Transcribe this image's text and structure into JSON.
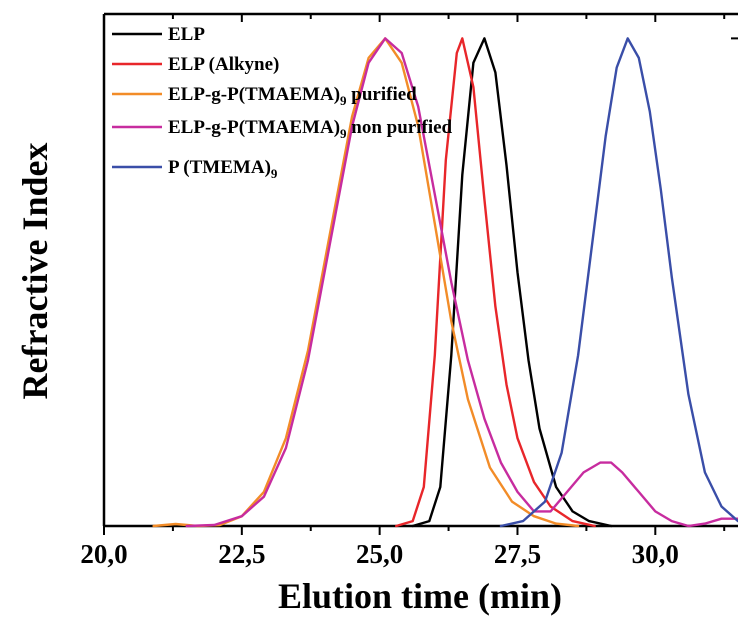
{
  "chart_data": {
    "type": "line",
    "xlabel": "Elution time (min)",
    "ylabel": "Refractive Index",
    "xlim": [
      20.0,
      31.5
    ],
    "ylim": [
      0,
      1.05
    ],
    "x_ticks": [
      "20,0",
      "22,5",
      "25,0",
      "27,5",
      "30,0"
    ],
    "x_tick_values": [
      20.0,
      22.5,
      25.0,
      27.5,
      30.0
    ],
    "grid": false,
    "legend_position": "top-left",
    "legend": [
      {
        "label": "ELP",
        "sub": "",
        "suffix": "",
        "color": "#000000"
      },
      {
        "label": "ELP (Alkyne)",
        "sub": "",
        "suffix": "",
        "color": "#e8262a"
      },
      {
        "label": "ELP-g-P(TMAEMA)",
        "sub": "9",
        "suffix": " purified",
        "color": "#f28c28"
      },
      {
        "label": "ELP-g-P(TMAEMA)",
        "sub": "9",
        "suffix": " non purified",
        "color": "#c72c9f"
      },
      {
        "label": "P (TMEMA)",
        "sub": "9",
        "suffix": "",
        "color": "#3a4ea8"
      }
    ],
    "series": [
      {
        "color": "#000000",
        "x": [
          25.6,
          25.9,
          26.1,
          26.3,
          26.5,
          26.7,
          26.9,
          27.1,
          27.3,
          27.5,
          27.7,
          27.9,
          28.2,
          28.5,
          28.8,
          29.2
        ],
        "y": [
          0,
          0.01,
          0.08,
          0.35,
          0.72,
          0.95,
          1.0,
          0.93,
          0.74,
          0.52,
          0.34,
          0.2,
          0.08,
          0.03,
          0.01,
          0
        ]
      },
      {
        "color": "#e8262a",
        "x": [
          25.3,
          25.6,
          25.8,
          26.0,
          26.2,
          26.4,
          26.5,
          26.7,
          26.9,
          27.1,
          27.3,
          27.5,
          27.8,
          28.1,
          28.5,
          28.9
        ],
        "y": [
          0,
          0.01,
          0.08,
          0.35,
          0.75,
          0.97,
          1.0,
          0.9,
          0.67,
          0.45,
          0.29,
          0.18,
          0.09,
          0.04,
          0.01,
          0
        ]
      },
      {
        "color": "#f28c28",
        "x": [
          20.9,
          21.3,
          21.7,
          22.1,
          22.5,
          22.9,
          23.3,
          23.7,
          24.1,
          24.5,
          24.8,
          25.1,
          25.4,
          25.7,
          26.0,
          26.3,
          26.6,
          27.0,
          27.4,
          27.8,
          28.2,
          28.6
        ],
        "y": [
          0,
          0.004,
          0,
          0.002,
          0.02,
          0.07,
          0.18,
          0.36,
          0.6,
          0.84,
          0.96,
          1.0,
          0.95,
          0.82,
          0.62,
          0.42,
          0.26,
          0.12,
          0.05,
          0.02,
          0.005,
          0
        ]
      },
      {
        "color": "#c72c9f",
        "x": [
          21.5,
          22.0,
          22.5,
          22.9,
          23.3,
          23.7,
          24.1,
          24.5,
          24.8,
          25.1,
          25.4,
          25.7,
          26.0,
          26.3,
          26.6,
          26.9,
          27.2,
          27.5,
          27.8,
          28.1,
          28.4,
          28.7,
          29.0,
          29.2,
          29.4,
          29.7,
          30.0,
          30.3,
          30.6,
          30.9,
          31.2,
          31.5
        ],
        "y": [
          0,
          0.002,
          0.02,
          0.06,
          0.16,
          0.34,
          0.58,
          0.82,
          0.95,
          1.0,
          0.97,
          0.86,
          0.68,
          0.5,
          0.34,
          0.22,
          0.13,
          0.07,
          0.03,
          0.03,
          0.07,
          0.11,
          0.13,
          0.13,
          0.11,
          0.07,
          0.03,
          0.01,
          0.0,
          0.005,
          0.015,
          0.015
        ]
      },
      {
        "color": "#3a4ea8",
        "x": [
          27.2,
          27.6,
          28.0,
          28.3,
          28.6,
          28.9,
          29.1,
          29.3,
          29.5,
          29.7,
          29.9,
          30.1,
          30.3,
          30.6,
          30.9,
          31.2,
          31.5
        ],
        "y": [
          0,
          0.01,
          0.05,
          0.15,
          0.35,
          0.62,
          0.8,
          0.94,
          1.0,
          0.96,
          0.85,
          0.69,
          0.51,
          0.27,
          0.11,
          0.04,
          0.01
        ]
      }
    ]
  }
}
